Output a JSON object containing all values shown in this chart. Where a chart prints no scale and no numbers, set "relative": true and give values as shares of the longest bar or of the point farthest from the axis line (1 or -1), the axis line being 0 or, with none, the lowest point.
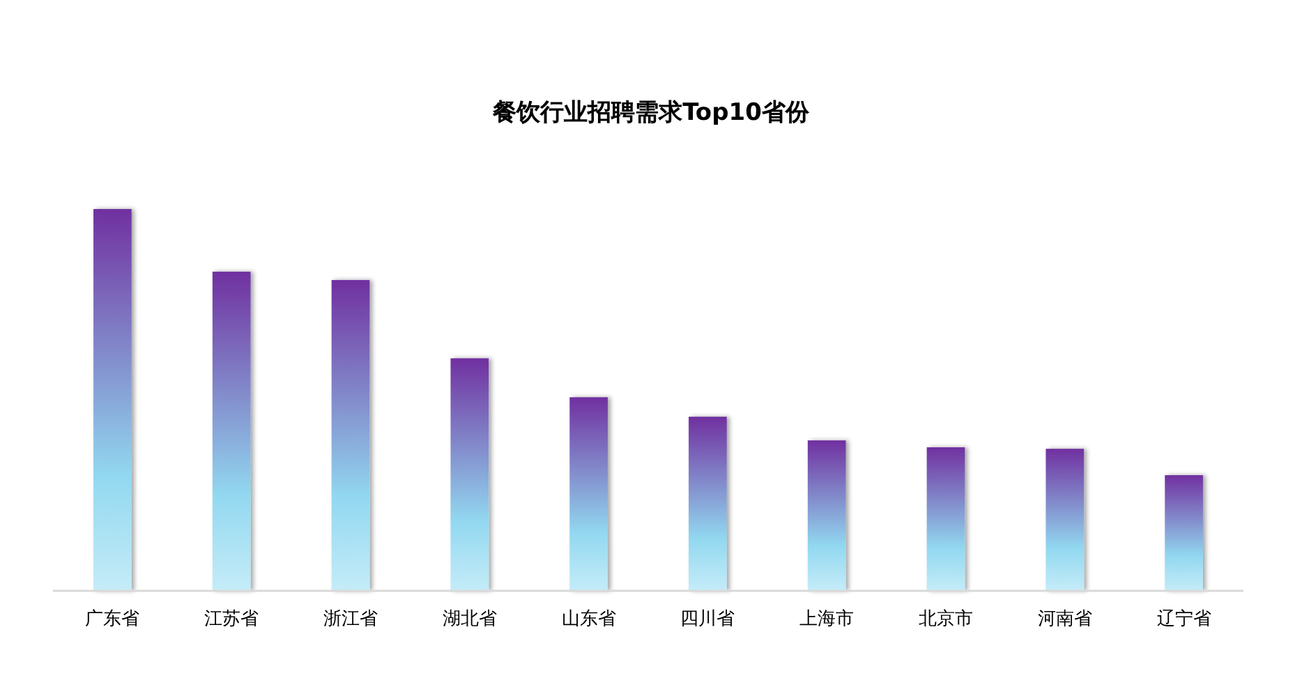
{
  "chart_data": {
    "type": "bar",
    "title": "餐饮行业招聘需求Top10省份",
    "relative": true,
    "categories": [
      "广东省",
      "江苏省",
      "浙江省",
      "湖北省",
      "山东省",
      "四川省",
      "上海市",
      "北京市",
      "河南省",
      "辽宁省"
    ],
    "values": [
      1,
      0.836,
      0.814,
      0.609,
      0.507,
      0.456,
      0.394,
      0.376,
      0.372,
      0.303
    ],
    "color": "#7030a0"
  }
}
